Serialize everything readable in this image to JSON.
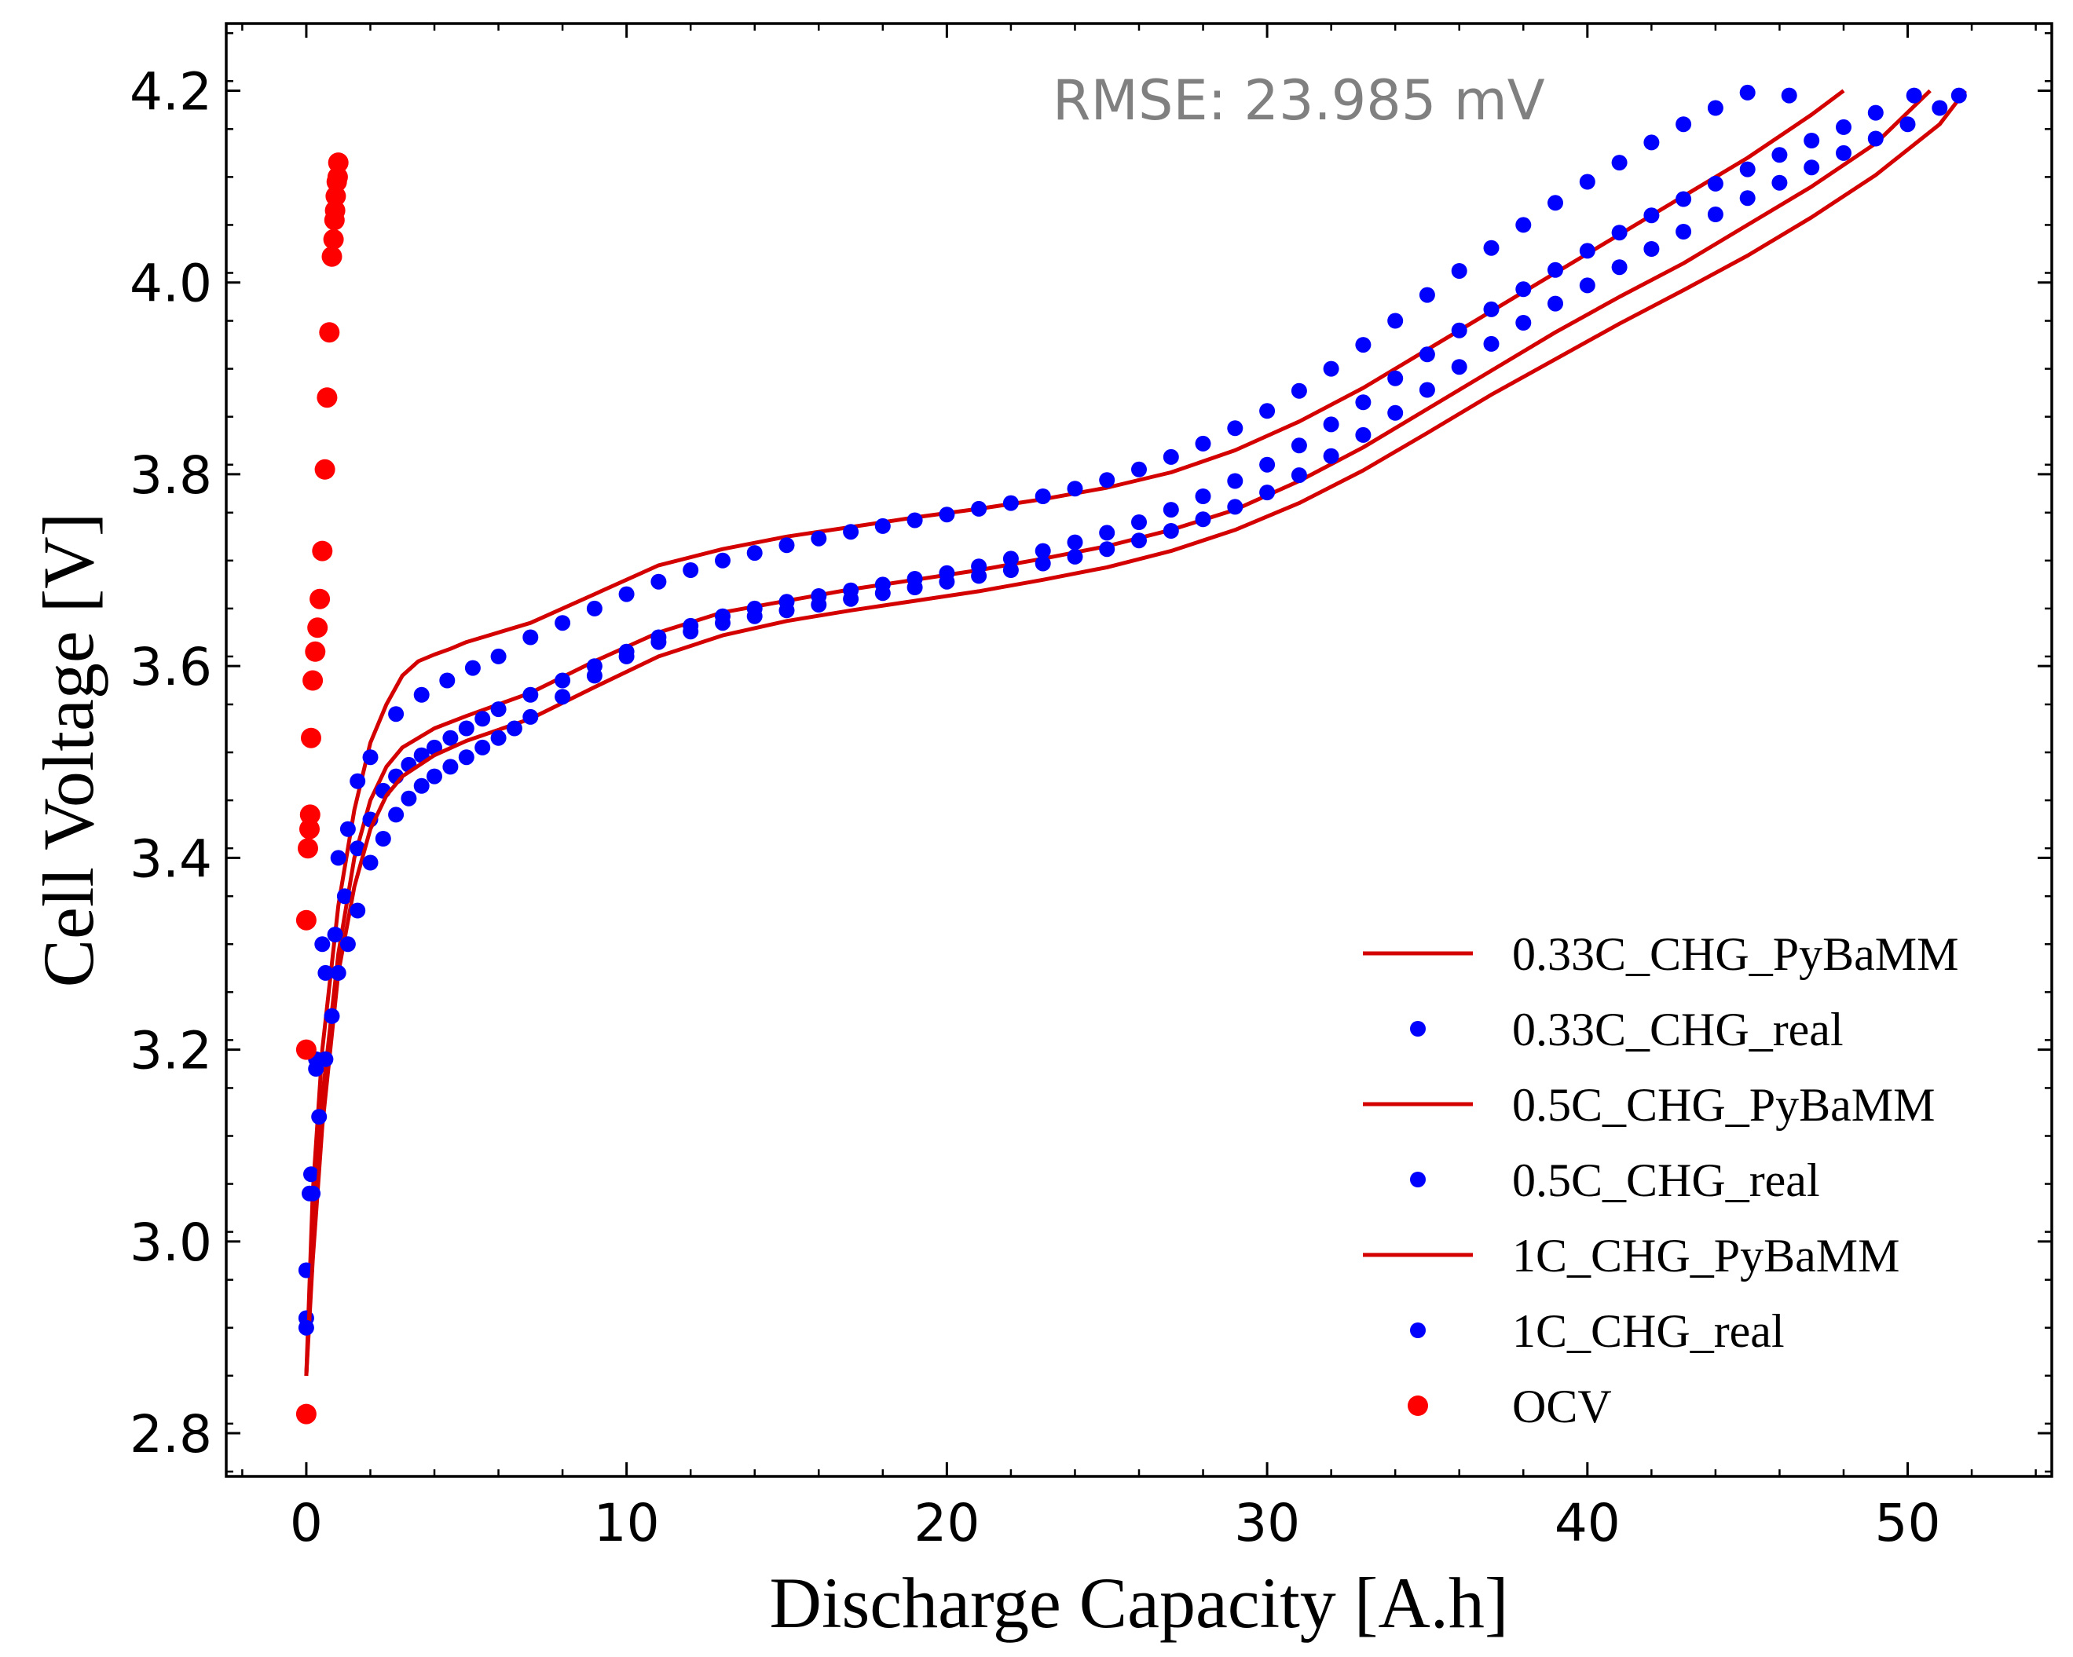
{
  "chart_data": {
    "type": "scatter",
    "xlabel": "Discharge Capacity [A.h]",
    "ylabel": "Cell Voltage [V]",
    "xlim": [
      -2.5,
      54.5
    ],
    "ylim": [
      2.755,
      4.27
    ],
    "x_ticks": [
      0,
      10,
      20,
      30,
      40,
      50
    ],
    "x_tick_labels": [
      "0",
      "10",
      "20",
      "30",
      "40",
      "50"
    ],
    "y_ticks": [
      2.8,
      3.0,
      3.2,
      3.4,
      3.6,
      3.8,
      4.0,
      4.2
    ],
    "y_tick_labels": [
      "2.8",
      "3.0",
      "3.2",
      "3.4",
      "3.6",
      "3.8",
      "4.0",
      "4.2"
    ],
    "grid": false,
    "legend_position": "lower-right",
    "annotation": {
      "text": "RMSE: 23.985 mV",
      "color": "#808080"
    },
    "colors": {
      "model": "#d40000",
      "real": "#0000ff",
      "ocv": "#ff0000"
    },
    "series": [
      {
        "name": "0.33C_CHG_PyBaMM",
        "kind": "line",
        "color": "#d40000",
        "x": [
          0,
          0.2,
          0.5,
          1,
          1.5,
          2,
          2.5,
          3,
          3.5,
          4,
          4.5,
          5,
          7,
          9,
          11,
          13,
          15,
          17,
          19,
          21,
          23,
          25,
          27,
          29,
          31,
          33,
          35,
          37,
          39,
          41,
          43,
          45,
          47,
          48
        ],
        "y": [
          2.86,
          3.05,
          3.2,
          3.35,
          3.45,
          3.52,
          3.56,
          3.59,
          3.605,
          3.612,
          3.618,
          3.625,
          3.645,
          3.675,
          3.705,
          3.722,
          3.735,
          3.745,
          3.755,
          3.764,
          3.774,
          3.786,
          3.802,
          3.825,
          3.855,
          3.89,
          3.93,
          3.97,
          4.01,
          4.05,
          4.09,
          4.13,
          4.175,
          4.2
        ]
      },
      {
        "name": "0.33C_CHG_real",
        "kind": "scatter",
        "color": "#0000ff",
        "x": [
          0,
          0.1,
          0.3,
          0.5,
          1,
          1.3,
          1.6,
          2,
          2.8,
          3.6,
          4.4,
          5.2,
          6,
          7,
          8,
          9,
          10,
          11,
          12,
          13,
          14,
          15,
          16,
          17,
          18,
          19,
          20,
          21,
          22,
          23,
          24,
          25,
          26,
          27,
          28,
          29,
          30,
          31,
          32,
          33,
          34,
          35,
          36,
          37,
          38,
          39,
          40,
          41,
          42,
          43,
          44,
          45,
          46.3
        ],
        "y": [
          2.92,
          3.05,
          3.19,
          3.31,
          3.4,
          3.43,
          3.48,
          3.505,
          3.55,
          3.57,
          3.585,
          3.598,
          3.61,
          3.63,
          3.645,
          3.66,
          3.675,
          3.688,
          3.7,
          3.71,
          3.718,
          3.726,
          3.733,
          3.74,
          3.746,
          3.752,
          3.758,
          3.764,
          3.77,
          3.777,
          3.785,
          3.794,
          3.805,
          3.818,
          3.832,
          3.848,
          3.866,
          3.887,
          3.91,
          3.935,
          3.96,
          3.987,
          4.012,
          4.036,
          4.06,
          4.083,
          4.105,
          4.125,
          4.146,
          4.165,
          4.182,
          4.198,
          4.195
        ]
      },
      {
        "name": "0.5C_CHG_PyBaMM",
        "kind": "line",
        "color": "#d40000",
        "x": [
          0,
          0.2,
          0.5,
          1,
          1.5,
          2,
          2.5,
          3,
          4,
          5,
          7,
          9,
          11,
          13,
          15,
          17,
          19,
          21,
          23,
          25,
          27,
          29,
          31,
          33,
          35,
          37,
          39,
          41,
          43,
          45,
          47,
          49,
          50.7
        ],
        "y": [
          2.86,
          3.0,
          3.15,
          3.3,
          3.4,
          3.46,
          3.495,
          3.515,
          3.535,
          3.548,
          3.572,
          3.605,
          3.635,
          3.656,
          3.668,
          3.68,
          3.69,
          3.7,
          3.712,
          3.725,
          3.742,
          3.763,
          3.793,
          3.828,
          3.868,
          3.908,
          3.948,
          3.985,
          4.02,
          4.06,
          4.1,
          4.145,
          4.2
        ]
      },
      {
        "name": "0.5C_CHG_real",
        "kind": "scatter",
        "color": "#0000ff",
        "x": [
          0,
          0.15,
          0.3,
          0.6,
          0.9,
          1.2,
          1.6,
          2,
          2.4,
          2.8,
          3.2,
          3.6,
          4,
          4.5,
          5,
          5.5,
          6,
          7,
          8,
          9,
          10,
          11,
          12,
          13,
          14,
          15,
          16,
          17,
          18,
          19,
          20,
          21,
          22,
          23,
          24,
          25,
          26,
          27,
          28,
          29,
          30,
          31,
          32,
          33,
          34,
          35,
          36,
          37,
          38,
          39,
          40,
          41,
          42,
          43,
          44,
          45,
          46,
          47,
          48,
          49,
          50.2
        ],
        "y": [
          2.97,
          3.07,
          3.18,
          3.28,
          3.32,
          3.36,
          3.41,
          3.44,
          3.47,
          3.485,
          3.497,
          3.507,
          3.515,
          3.525,
          3.535,
          3.545,
          3.555,
          3.57,
          3.585,
          3.6,
          3.615,
          3.63,
          3.642,
          3.652,
          3.66,
          3.667,
          3.673,
          3.679,
          3.685,
          3.691,
          3.697,
          3.704,
          3.712,
          3.72,
          3.729,
          3.739,
          3.75,
          3.763,
          3.777,
          3.793,
          3.81,
          3.83,
          3.852,
          3.875,
          3.9,
          3.925,
          3.95,
          3.972,
          3.993,
          4.013,
          4.033,
          4.052,
          4.07,
          4.087,
          4.103,
          4.118,
          4.133,
          4.148,
          4.162,
          4.177,
          4.195
        ]
      },
      {
        "name": "1C_CHG_PyBaMM",
        "kind": "line",
        "color": "#d40000",
        "x": [
          0,
          0.2,
          0.5,
          1,
          1.5,
          2,
          2.5,
          3,
          4,
          5,
          7,
          9,
          11,
          13,
          15,
          17,
          19,
          21,
          23,
          25,
          27,
          29,
          31,
          33,
          35,
          37,
          39,
          41,
          43,
          45,
          47,
          49,
          51,
          51.8
        ],
        "y": [
          2.86,
          2.98,
          3.12,
          3.28,
          3.37,
          3.43,
          3.465,
          3.485,
          3.507,
          3.522,
          3.545,
          3.578,
          3.61,
          3.632,
          3.647,
          3.658,
          3.668,
          3.678,
          3.69,
          3.703,
          3.72,
          3.742,
          3.77,
          3.804,
          3.843,
          3.883,
          3.92,
          3.957,
          3.992,
          4.028,
          4.068,
          4.112,
          4.165,
          4.2
        ]
      },
      {
        "name": "1C_CHG_real",
        "kind": "scatter",
        "color": "#0000ff",
        "x": [
          0,
          0.2,
          0.4,
          0.6,
          0.8,
          1,
          1.3,
          1.6,
          2,
          2.4,
          2.8,
          3.2,
          3.6,
          4,
          4.5,
          5,
          5.5,
          6,
          6.5,
          7,
          8,
          9,
          10,
          11,
          12,
          13,
          14,
          15,
          16,
          17,
          18,
          19,
          20,
          21,
          22,
          23,
          24,
          25,
          26,
          27,
          28,
          29,
          30,
          31,
          32,
          33,
          34,
          35,
          36,
          37,
          38,
          39,
          40,
          41,
          42,
          43,
          44,
          45,
          46,
          47,
          48,
          49,
          50,
          51,
          51.6
        ],
        "y": [
          2.91,
          3.05,
          3.13,
          3.19,
          3.235,
          3.28,
          3.31,
          3.345,
          3.395,
          3.42,
          3.445,
          3.462,
          3.475,
          3.485,
          3.495,
          3.505,
          3.515,
          3.525,
          3.535,
          3.547,
          3.568,
          3.59,
          3.61,
          3.625,
          3.636,
          3.645,
          3.652,
          3.658,
          3.664,
          3.67,
          3.676,
          3.682,
          3.688,
          3.694,
          3.7,
          3.707,
          3.714,
          3.722,
          3.731,
          3.741,
          3.753,
          3.766,
          3.781,
          3.799,
          3.819,
          3.841,
          3.864,
          3.888,
          3.912,
          3.936,
          3.958,
          3.978,
          3.997,
          4.016,
          4.035,
          4.053,
          4.071,
          4.088,
          4.104,
          4.12,
          4.135,
          4.15,
          4.165,
          4.182,
          4.195
        ]
      },
      {
        "name": "OCV",
        "kind": "scatter",
        "color": "#ff0000",
        "x": [
          0,
          0,
          0,
          0.05,
          0.1,
          0.12,
          0.15,
          0.2,
          0.28,
          0.35,
          0.42,
          0.5,
          0.58,
          0.65,
          0.72,
          0.8,
          0.85,
          0.88,
          0.9,
          0.92,
          0.95,
          0.98,
          1.0
        ],
        "y": [
          2.82,
          3.2,
          3.335,
          3.41,
          3.43,
          3.445,
          3.525,
          3.585,
          3.615,
          3.64,
          3.67,
          3.72,
          3.805,
          3.88,
          3.948,
          4.027,
          4.045,
          4.065,
          4.075,
          4.09,
          4.105,
          4.11,
          4.125
        ]
      }
    ]
  }
}
